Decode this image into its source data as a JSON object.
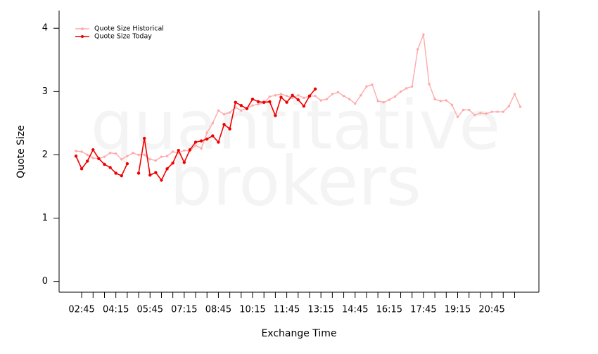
{
  "chart_data": {
    "type": "line",
    "watermark": [
      "quantitative",
      "brokers"
    ],
    "y_label": "Quote Size",
    "x_label": "Exchange Time",
    "categories": [
      null,
      "02:45",
      null,
      null,
      null,
      null,
      null,
      "04:15",
      null,
      null,
      null,
      null,
      null,
      "05:45",
      null,
      null,
      null,
      null,
      null,
      "07:15",
      null,
      null,
      null,
      null,
      null,
      "08:45",
      null,
      null,
      null,
      null,
      null,
      "10:15",
      null,
      null,
      null,
      null,
      null,
      "11:45",
      null,
      null,
      null,
      null,
      null,
      "13:15",
      null,
      null,
      null,
      null,
      null,
      "14:45",
      null,
      null,
      null,
      null,
      null,
      "16:15",
      null,
      null,
      null,
      null,
      null,
      "17:45",
      null,
      null,
      null,
      null,
      null,
      "19:15",
      null,
      null,
      null,
      null,
      null,
      "20:45",
      null,
      null,
      null,
      null,
      null
    ],
    "series": [
      {
        "name": "Quote Size Historical",
        "color": "#ffaaaa",
        "values": [
          2.06,
          2.05,
          2.0,
          1.95,
          1.94,
          1.97,
          2.03,
          2.02,
          1.93,
          1.98,
          2.03,
          2.0,
          2.0,
          1.93,
          1.91,
          1.97,
          1.98,
          2.05,
          2.03,
          2.07,
          2.06,
          2.15,
          2.1,
          2.35,
          2.5,
          2.7,
          2.64,
          2.67,
          2.75,
          2.7,
          2.74,
          2.78,
          2.8,
          2.82,
          2.92,
          2.94,
          2.96,
          2.93,
          2.9,
          2.94,
          2.9,
          2.93,
          2.93,
          2.86,
          2.88,
          2.96,
          2.99,
          2.93,
          2.88,
          2.81,
          2.94,
          3.08,
          3.11,
          2.85,
          2.83,
          2.87,
          2.92,
          3.0,
          3.05,
          3.08,
          3.67,
          3.9,
          3.12,
          2.88,
          2.85,
          2.86,
          2.79,
          2.6,
          2.71,
          2.71,
          2.63,
          2.66,
          2.65,
          2.68,
          2.68,
          2.68,
          2.77,
          2.96,
          2.76
        ]
      },
      {
        "name": "Quote Size Today",
        "color": "#ee0000",
        "values": [
          1.98,
          1.78,
          1.9,
          2.08,
          1.94,
          1.85,
          1.8,
          1.71,
          1.67,
          1.86,
          null,
          1.71,
          2.26,
          1.68,
          1.72,
          1.6,
          1.78,
          1.87,
          2.07,
          1.88,
          2.08,
          2.2,
          2.22,
          2.25,
          2.3,
          2.2,
          2.48,
          2.41,
          2.83,
          2.78,
          2.73,
          2.88,
          2.84,
          2.83,
          2.84,
          2.62,
          2.91,
          2.83,
          2.94,
          2.87,
          2.77,
          2.93,
          3.04,
          null,
          null,
          null,
          null,
          null,
          null,
          null,
          null,
          null,
          null,
          null,
          null,
          null,
          null,
          null,
          null,
          null,
          null,
          null,
          null,
          null,
          null,
          null,
          null,
          null,
          null,
          null,
          null,
          null,
          null,
          null,
          null,
          null,
          null,
          null,
          null
        ]
      }
    ],
    "ylim": [
      -0.17,
      4.28
    ],
    "yticks": [
      0,
      1,
      2,
      3,
      4
    ],
    "legend": "top-left"
  }
}
